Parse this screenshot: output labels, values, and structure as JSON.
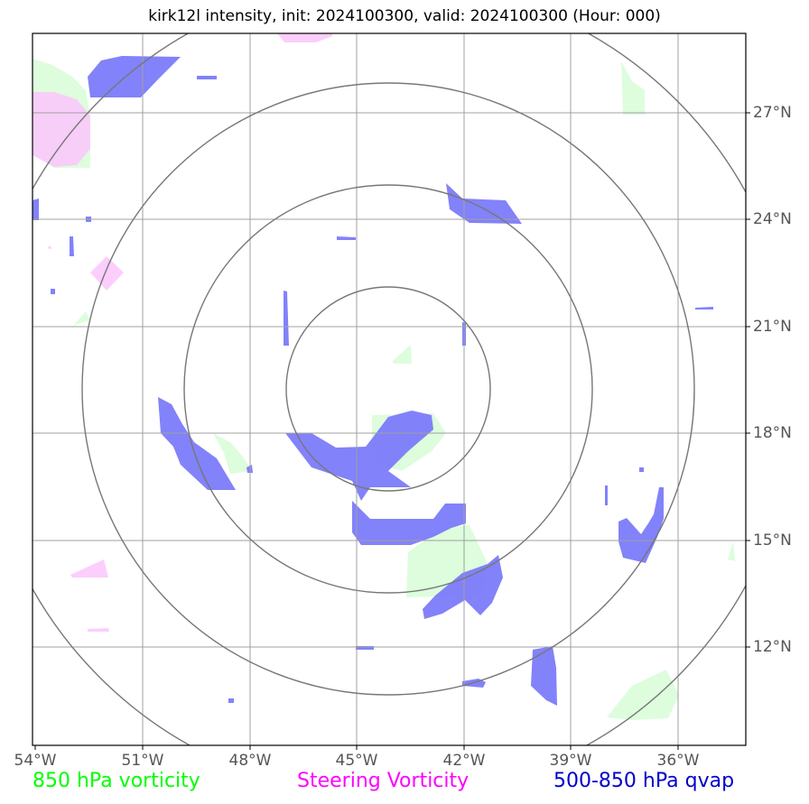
{
  "title": "kirk12l intensity, init: 2024100300, valid: 2024100300 (Hour: 000)",
  "lon_labels": [
    "54°W",
    "51°W",
    "48°W",
    "45°W",
    "42°W",
    "39°W",
    "36°W"
  ],
  "lat_labels": [
    "27°N",
    "24°N",
    "21°N",
    "18°N",
    "15°N",
    "12°N"
  ],
  "legend": [
    {
      "label": "850 hPa vorticity",
      "color": "#00ff00"
    },
    {
      "label": "Steering Vorticity",
      "color": "#ff00ff"
    },
    {
      "label": "500-850 hPa qvap",
      "color": "#0000cc"
    }
  ],
  "colors": {
    "vort850_fill": "#ddfddd",
    "steering_fill": "#fcc6fc",
    "qvap_fill": "#7b7bfa",
    "grid": "#a0a0a0",
    "rings": "#777777",
    "frame": "#000000"
  }
}
